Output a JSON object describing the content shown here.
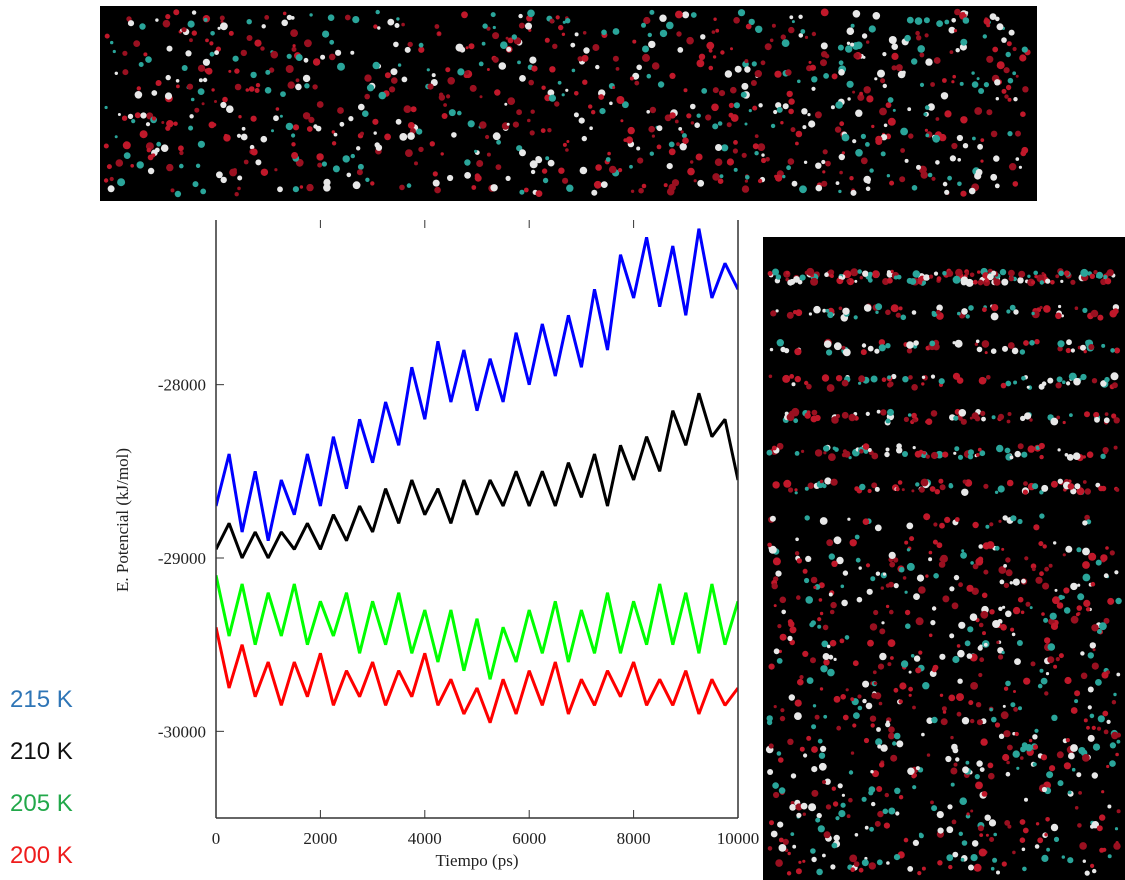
{
  "chart_data": {
    "type": "line",
    "x_label": "Tiempo (ps)",
    "y_label": "E. Potencial (kJ/mol)",
    "xlim": [
      0,
      10000
    ],
    "xticks": [
      0,
      2000,
      4000,
      6000,
      8000,
      10000
    ],
    "ylim": [
      -30500,
      -27050
    ],
    "yticks": [
      -30000,
      -29000,
      -28000
    ],
    "x": [
      0,
      250,
      500,
      750,
      1000,
      1250,
      1500,
      1750,
      2000,
      2250,
      2500,
      2750,
      3000,
      3250,
      3500,
      3750,
      4000,
      4250,
      4500,
      4750,
      5000,
      5250,
      5500,
      5750,
      6000,
      6250,
      6500,
      6750,
      7000,
      7250,
      7500,
      7750,
      8000,
      8250,
      8500,
      8750,
      9000,
      9250,
      9500,
      9750,
      10000
    ],
    "series": [
      {
        "name": "215 K",
        "color": "#0000ff",
        "label_color": "#2e75b6",
        "values": [
          -28700,
          -28400,
          -28850,
          -28500,
          -28900,
          -28550,
          -28750,
          -28400,
          -28700,
          -28300,
          -28600,
          -28200,
          -28450,
          -28100,
          -28350,
          -27900,
          -28200,
          -27750,
          -28100,
          -27800,
          -28150,
          -27850,
          -28100,
          -27700,
          -28000,
          -27650,
          -27950,
          -27600,
          -27900,
          -27450,
          -27800,
          -27250,
          -27500,
          -27150,
          -27550,
          -27200,
          -27600,
          -27100,
          -27500,
          -27300,
          -27450
        ]
      },
      {
        "name": "210 K",
        "color": "#000000",
        "label_color": "#111111",
        "values": [
          -28950,
          -28800,
          -29000,
          -28850,
          -29000,
          -28850,
          -28950,
          -28800,
          -28950,
          -28750,
          -28900,
          -28700,
          -28850,
          -28600,
          -28800,
          -28550,
          -28750,
          -28600,
          -28800,
          -28550,
          -28750,
          -28550,
          -28700,
          -28500,
          -28700,
          -28500,
          -28700,
          -28450,
          -28650,
          -28400,
          -28700,
          -28350,
          -28550,
          -28300,
          -28500,
          -28150,
          -28350,
          -28050,
          -28300,
          -28200,
          -28550
        ]
      },
      {
        "name": "205 K",
        "color": "#00ff00",
        "label_color": "#22a84a",
        "values": [
          -29100,
          -29450,
          -29150,
          -29500,
          -29200,
          -29450,
          -29150,
          -29500,
          -29250,
          -29450,
          -29200,
          -29550,
          -29250,
          -29500,
          -29200,
          -29550,
          -29300,
          -29600,
          -29300,
          -29650,
          -29350,
          -29700,
          -29400,
          -29600,
          -29300,
          -29550,
          -29250,
          -29600,
          -29300,
          -29550,
          -29200,
          -29550,
          -29250,
          -29500,
          -29150,
          -29500,
          -29200,
          -29550,
          -29150,
          -29500,
          -29250
        ]
      },
      {
        "name": "200 K",
        "color": "#ff0000",
        "label_color": "#ee1c1c",
        "values": [
          -29400,
          -29750,
          -29500,
          -29800,
          -29600,
          -29850,
          -29600,
          -29800,
          -29550,
          -29850,
          -29650,
          -29800,
          -29600,
          -29850,
          -29650,
          -29800,
          -29550,
          -29850,
          -29700,
          -29900,
          -29750,
          -29950,
          -29700,
          -29900,
          -29650,
          -29850,
          -29600,
          -29900,
          -29700,
          -29850,
          -29650,
          -29800,
          -29600,
          -29850,
          -29700,
          -29850,
          -29650,
          -29900,
          -29700,
          -29850,
          -29750
        ]
      }
    ]
  }
}
